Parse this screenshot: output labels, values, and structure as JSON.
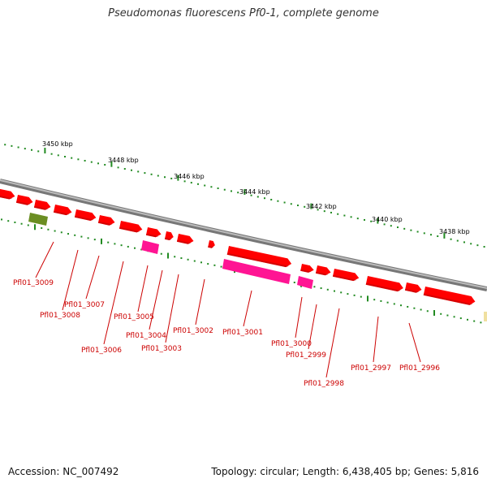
{
  "title": "Pseudomonas fluorescens Pf0-1, complete genome",
  "accession": "Accession: NC_007492",
  "topology": "Topology: circular; Length: 6,438,405 bp; Genes: 5,816",
  "colors": {
    "backbone": "#808080",
    "gene_forward": "#ff0000",
    "gene_other": "#ff1493",
    "gene_rna": "#6b8e23",
    "tick": "#228b22",
    "label": "#cc0000"
  },
  "scale": {
    "unit": "kbp",
    "labels": [
      "3450 kbp",
      "3448 kbp",
      "3446 kbp",
      "3444 kbp",
      "3442 kbp",
      "3440 kbp",
      "3438 kbp"
    ]
  },
  "genes": [
    "Pfl01_3009",
    "Pfl01_3008",
    "Pfl01_3007",
    "Pfl01_3006",
    "Pfl01_3005",
    "Pfl01_3004",
    "Pfl01_3003",
    "Pfl01_3002",
    "Pfl01_3001",
    "Pfl01_3000",
    "Pfl01_2999",
    "Pfl01_2998",
    "Pfl01_2997",
    "Pfl01_2996"
  ]
}
